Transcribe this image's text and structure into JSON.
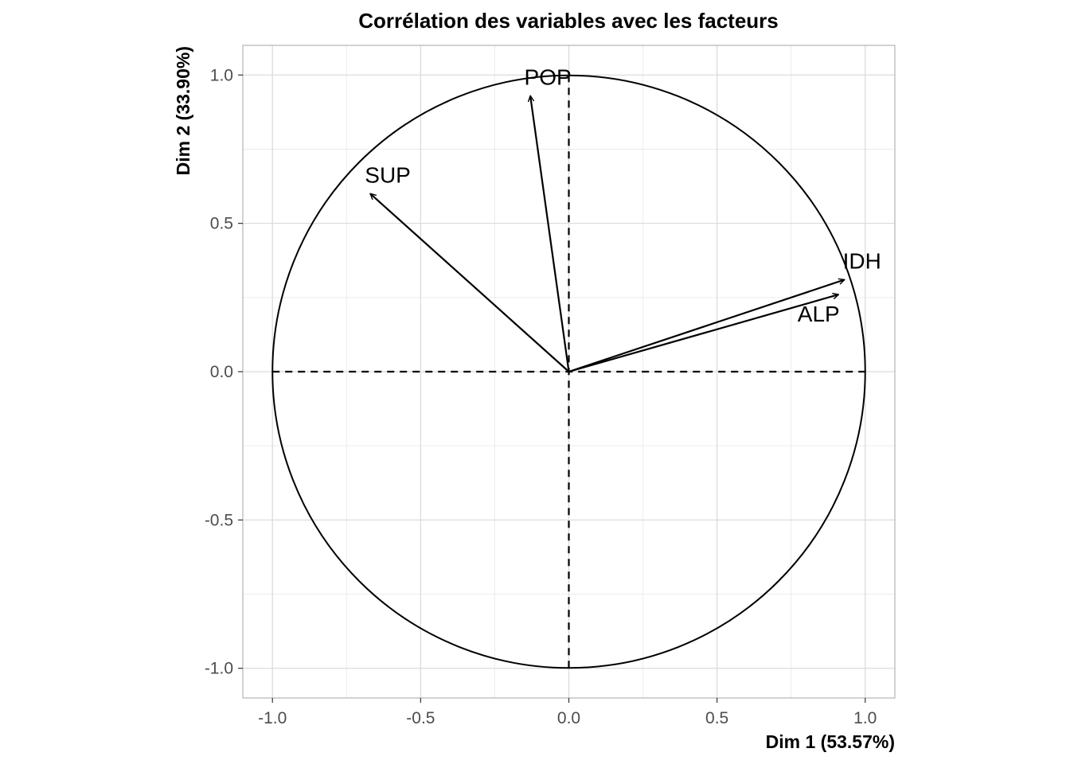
{
  "chart_data": {
    "type": "scatter",
    "subtype": "pca-correlation-circle",
    "title": "Corrélation des variables avec les facteurs",
    "xlabel": "Dim 1 (53.57%)",
    "ylabel": "Dim 2 (33.90%)",
    "xlim": [
      -1.1,
      1.1
    ],
    "ylim": [
      -1.1,
      1.1
    ],
    "x_ticks": [
      -1.0,
      -0.5,
      0.0,
      0.5,
      1.0
    ],
    "y_ticks": [
      -1.0,
      -0.5,
      0.0,
      0.5,
      1.0
    ],
    "x_tick_labels": [
      "-1.0",
      "-0.5",
      "0.0",
      "0.5",
      "1.0"
    ],
    "y_tick_labels": [
      "-1.0",
      "-0.5",
      "0.0",
      "0.5",
      "1.0"
    ],
    "grid": true,
    "unit_circle": true,
    "variables": [
      {
        "name": "POP",
        "x": -0.13,
        "y": 0.93
      },
      {
        "name": "SUP",
        "x": -0.67,
        "y": 0.6
      },
      {
        "name": "IDH",
        "x": 0.93,
        "y": 0.31
      },
      {
        "name": "ALP",
        "x": 0.91,
        "y": 0.26
      }
    ]
  }
}
